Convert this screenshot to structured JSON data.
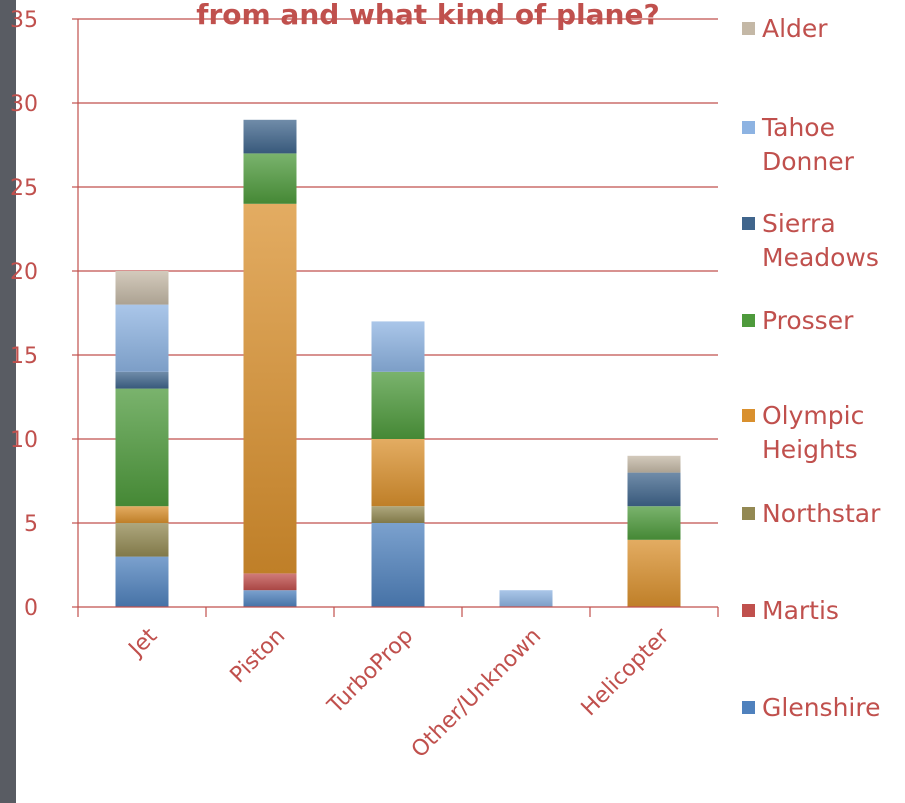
{
  "chart_data": {
    "type": "bar",
    "stacked": true,
    "title": "from and what kind of plane?",
    "xlabel": "",
    "ylabel": "",
    "ylim": [
      0,
      35
    ],
    "yticks": [
      0,
      5,
      10,
      15,
      20,
      25,
      30,
      35
    ],
    "grid": true,
    "legend_position": "right",
    "categories": [
      "Jet",
      "Piston",
      "TurboProp",
      "Other/Unknown",
      "Helicopter"
    ],
    "series": [
      {
        "name": "Glenshire",
        "color": "#4f81bd",
        "values": [
          3,
          1,
          5,
          0,
          0
        ]
      },
      {
        "name": "Martis",
        "color": "#c0504d",
        "values": [
          0,
          1,
          0,
          0,
          0
        ]
      },
      {
        "name": "Northstar",
        "color": "#938953",
        "values": [
          2,
          0,
          1,
          0,
          0
        ]
      },
      {
        "name": "Olympic Heights",
        "color": "#d9902e",
        "values": [
          1,
          22,
          4,
          0,
          4
        ]
      },
      {
        "name": "Prosser",
        "color": "#4e9a3c",
        "values": [
          7,
          3,
          4,
          0,
          2
        ]
      },
      {
        "name": "Sierra Meadows",
        "color": "#40658c",
        "values": [
          1,
          2,
          0,
          0,
          2
        ]
      },
      {
        "name": "Tahoe Donner",
        "color": "#8db3e2",
        "values": [
          4,
          0,
          3,
          1,
          0
        ]
      },
      {
        "name": "Alder",
        "color": "#c4b8a6",
        "values": [
          2,
          0,
          0,
          0,
          1
        ]
      }
    ]
  }
}
